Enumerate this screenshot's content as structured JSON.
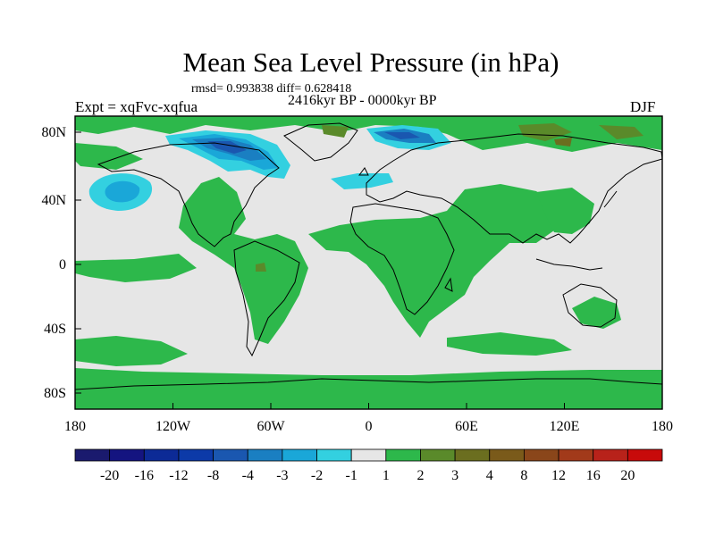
{
  "title": "Mean Sea Level Pressure (in hPa)",
  "stats_line": "rmsd= 0.993838 diff= 0.628418",
  "expt_label": "Expt = xqFvc-xqfua",
  "period_label": "2416kyr BP - 0000kyr BP",
  "season_label": "DJF",
  "colors": {
    "ocean_background": "#e6e6e6",
    "positive_1_2": "#2db84b",
    "positive_2_3": "#5a8a2a",
    "positive_3_4": "#6b6e1f",
    "neg_1_2": "#33d0e0",
    "neg_2_3": "#1aa7d8",
    "neg_3_4": "#1a7fc2",
    "neg_4_8": "#1a57b0"
  },
  "map": {
    "lat_ticks": [
      "80N",
      "40N",
      "0",
      "40S",
      "80S"
    ],
    "lon_ticks": [
      "180",
      "120W",
      "60W",
      "0",
      "60E",
      "120E",
      "180"
    ]
  },
  "colorbar": {
    "colors": [
      "#1a1a6e",
      "#141480",
      "#0c2a96",
      "#0c3aa8",
      "#1a57b0",
      "#1a7fc2",
      "#1aa7d8",
      "#33d0e0",
      "#e6e6e6",
      "#2db84b",
      "#5a8a2a",
      "#6b6e1f",
      "#7a5a1a",
      "#8a461a",
      "#a23a1a",
      "#b8221a",
      "#c80a0a"
    ],
    "labels": [
      "-20",
      "-16",
      "-12",
      "-8",
      "-4",
      "-3",
      "-2",
      "-1",
      "1",
      "2",
      "3",
      "4",
      "8",
      "12",
      "16",
      "20"
    ]
  }
}
